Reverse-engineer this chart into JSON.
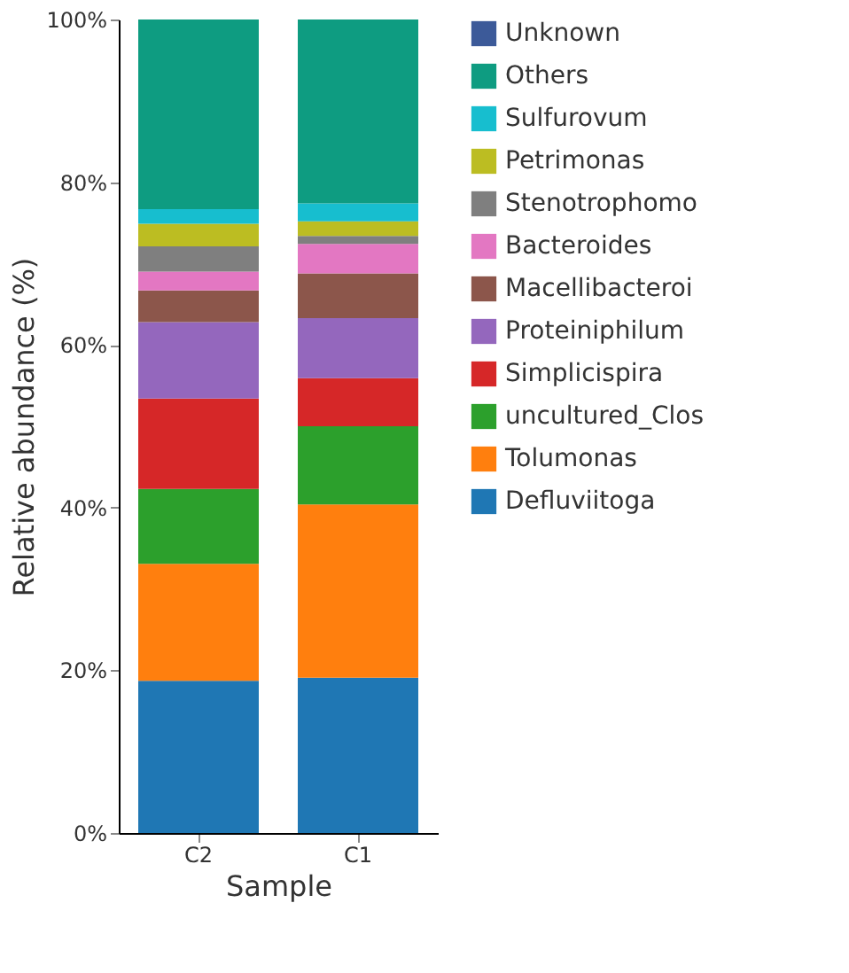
{
  "chart_data": {
    "type": "bar",
    "stacked": true,
    "xlabel": "Sample",
    "ylabel": "Relative abundance (%)",
    "categories": [
      "C2",
      "C1"
    ],
    "series": [
      {
        "name": "Defluviitoga",
        "color": "#1f77b4",
        "values": [
          18.7,
          19.1
        ]
      },
      {
        "name": "Tolumonas",
        "color": "#ff7f0e",
        "values": [
          14.4,
          21.3
        ]
      },
      {
        "name": "uncultured_Clos",
        "color": "#2ca02c",
        "values": [
          9.2,
          9.6
        ]
      },
      {
        "name": "Simplicispira",
        "color": "#d62728",
        "values": [
          11.1,
          5.9
        ]
      },
      {
        "name": "Proteiniphilum",
        "color": "#9467bd",
        "values": [
          9.4,
          7.4
        ]
      },
      {
        "name": "Macellibacteroi",
        "color": "#8c564b",
        "values": [
          3.9,
          5.5
        ]
      },
      {
        "name": "Bacteroides",
        "color": "#e377c2",
        "values": [
          2.3,
          3.6
        ]
      },
      {
        "name": "Stenotrophomo",
        "color": "#7f7f7f",
        "values": [
          3.1,
          1.0
        ]
      },
      {
        "name": "Petrimonas",
        "color": "#bcbd22",
        "values": [
          2.8,
          1.8
        ]
      },
      {
        "name": "Sulfurovum",
        "color": "#17becf",
        "values": [
          1.8,
          2.2
        ]
      },
      {
        "name": "Others",
        "color": "#0e9c81",
        "values": [
          23.3,
          22.6
        ]
      },
      {
        "name": "Unknown",
        "color": "#3c5a99",
        "values": [
          0,
          0
        ]
      }
    ],
    "ylim": [
      0,
      100
    ],
    "yticks": [
      {
        "value": 0,
        "label": "0%"
      },
      {
        "value": 20,
        "label": "20%"
      },
      {
        "value": 40,
        "label": "40%"
      },
      {
        "value": 60,
        "label": "60%"
      },
      {
        "value": 80,
        "label": "80%"
      },
      {
        "value": 100,
        "label": "100%"
      }
    ],
    "grid": false,
    "legend": "top right"
  }
}
